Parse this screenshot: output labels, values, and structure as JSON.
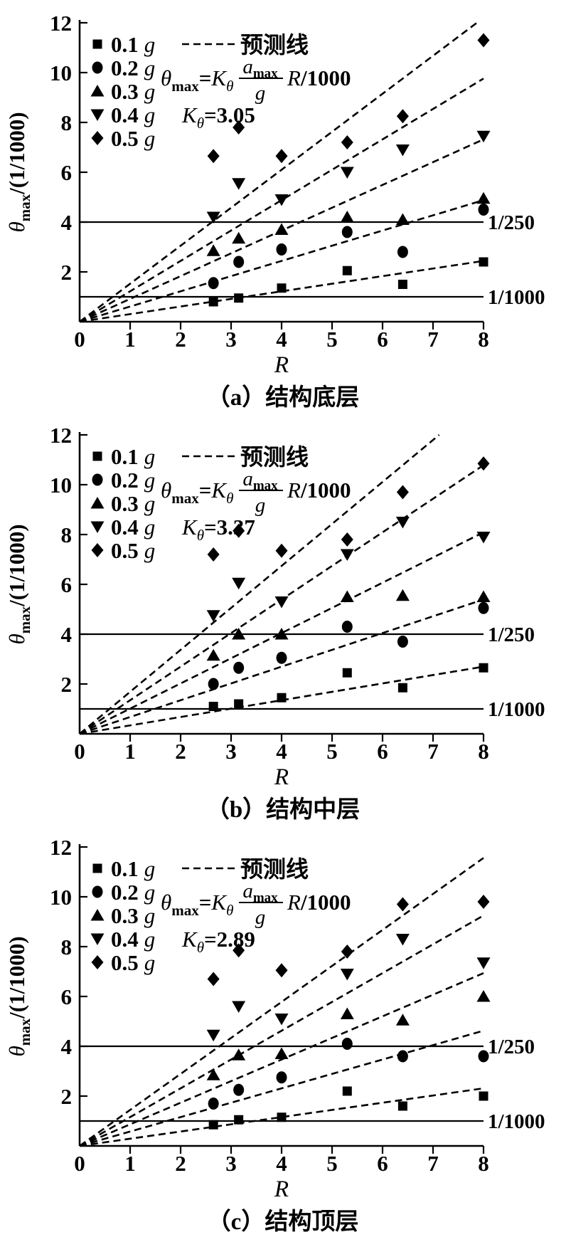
{
  "page": {
    "background": "#ffffff",
    "ink": "#000000"
  },
  "axis": {
    "xlabel": "R",
    "ylabel_text": "θmax/(1/1000)",
    "ylabel_parts": {
      "theta": "θ",
      "sub": "max",
      "rest": "/(1/1000)"
    },
    "x_ticks": [
      0,
      1,
      2,
      3,
      4,
      5,
      6,
      7,
      8
    ],
    "y_ticks": [
      2,
      4,
      6,
      8,
      10,
      12
    ],
    "xlim": [
      0,
      8
    ],
    "ylim": [
      0,
      12
    ]
  },
  "legend": {
    "position": "top-left-inside",
    "entries": [
      {
        "marker": "square",
        "value": "0.1",
        "unit": "g"
      },
      {
        "marker": "circle",
        "value": "0.2",
        "unit": "g"
      },
      {
        "marker": "triangle-up",
        "value": "0.3",
        "unit": "g"
      },
      {
        "marker": "triangle-down",
        "value": "0.4",
        "unit": "g"
      },
      {
        "marker": "diamond",
        "value": "0.5",
        "unit": "g"
      }
    ],
    "line_label": "预测线"
  },
  "formula": {
    "theta": "θ",
    "theta_sub": "max",
    "equals": "=",
    "k": "K",
    "k_sub": "θ",
    "num": "a",
    "num_sub": "max",
    "den": "g",
    "r": "R",
    "tail": "/1000"
  },
  "ref_lines": [
    {
      "y": 4,
      "label": "1/250"
    },
    {
      "y": 1,
      "label": "1/1000"
    }
  ],
  "chart_data": [
    {
      "type": "scatter",
      "caption": "（a）结构底层",
      "xlabel": "R",
      "ylabel": "θmax/(1/1000)",
      "xlim": [
        0,
        8
      ],
      "ylim": [
        0,
        12
      ],
      "grid": false,
      "k_theta": 3.05,
      "k_label": {
        "k": "K",
        "sub": "θ",
        "eq": "=",
        "value": "3.05"
      },
      "x": [
        2.65,
        3.15,
        4,
        5.3,
        6.4,
        8
      ],
      "series": [
        {
          "name": "0.1 g",
          "accel_g": 0.1,
          "marker": "square",
          "values": [
            0.8,
            0.95,
            1.35,
            2.05,
            1.5,
            2.4
          ]
        },
        {
          "name": "0.2 g",
          "accel_g": 0.2,
          "marker": "circle",
          "values": [
            1.55,
            2.4,
            2.9,
            3.6,
            2.8,
            4.5
          ]
        },
        {
          "name": "0.3 g",
          "accel_g": 0.3,
          "marker": "triangle-up",
          "values": [
            2.85,
            3.35,
            3.7,
            4.2,
            4.1,
            4.95
          ]
        },
        {
          "name": "0.4 g",
          "accel_g": 0.4,
          "marker": "triangle-down",
          "values": [
            4.2,
            5.55,
            4.9,
            6.0,
            6.9,
            7.45
          ]
        },
        {
          "name": "0.5 g",
          "accel_g": 0.5,
          "marker": "diamond",
          "values": [
            6.65,
            7.8,
            6.65,
            7.2,
            8.25,
            11.3
          ]
        }
      ]
    },
    {
      "type": "scatter",
      "caption": "（b）结构中层",
      "xlabel": "R",
      "ylabel": "θmax/(1/1000)",
      "xlim": [
        0,
        8
      ],
      "ylim": [
        0,
        12
      ],
      "grid": false,
      "k_theta": 3.37,
      "k_label": {
        "k": "K",
        "sub": "θ",
        "eq": "=",
        "value": "3.37"
      },
      "x": [
        2.65,
        3.15,
        4,
        5.3,
        6.4,
        8
      ],
      "series": [
        {
          "name": "0.1 g",
          "accel_g": 0.1,
          "marker": "square",
          "values": [
            1.1,
            1.2,
            1.45,
            2.45,
            1.85,
            2.65
          ]
        },
        {
          "name": "0.2 g",
          "accel_g": 0.2,
          "marker": "circle",
          "values": [
            2.0,
            2.65,
            3.05,
            4.3,
            3.7,
            5.05
          ]
        },
        {
          "name": "0.3 g",
          "accel_g": 0.3,
          "marker": "triangle-up",
          "values": [
            3.15,
            4.0,
            4.0,
            5.5,
            5.55,
            5.5
          ]
        },
        {
          "name": "0.4 g",
          "accel_g": 0.4,
          "marker": "triangle-down",
          "values": [
            4.75,
            6.05,
            5.3,
            7.2,
            8.5,
            7.9
          ]
        },
        {
          "name": "0.5 g",
          "accel_g": 0.5,
          "marker": "diamond",
          "values": [
            7.2,
            8.15,
            7.35,
            7.8,
            9.7,
            10.85
          ]
        }
      ]
    },
    {
      "type": "scatter",
      "caption": "（c）结构顶层",
      "xlabel": "R",
      "ylabel": "θmax/(1/1000)",
      "xlim": [
        0,
        8
      ],
      "ylim": [
        0,
        12
      ],
      "grid": false,
      "k_theta": 2.89,
      "k_label": {
        "k": "K",
        "sub": "θ",
        "eq": "=",
        "value": "2.89"
      },
      "x": [
        2.65,
        3.15,
        4,
        5.3,
        6.4,
        8
      ],
      "series": [
        {
          "name": "0.1 g",
          "accel_g": 0.1,
          "marker": "square",
          "values": [
            0.85,
            1.05,
            1.15,
            2.2,
            1.6,
            2.0
          ]
        },
        {
          "name": "0.2 g",
          "accel_g": 0.2,
          "marker": "circle",
          "values": [
            1.7,
            2.25,
            2.75,
            4.1,
            3.6,
            3.6
          ]
        },
        {
          "name": "0.3 g",
          "accel_g": 0.3,
          "marker": "triangle-up",
          "values": [
            2.85,
            3.65,
            3.7,
            5.3,
            5.05,
            6.0
          ]
        },
        {
          "name": "0.4 g",
          "accel_g": 0.4,
          "marker": "triangle-down",
          "values": [
            4.45,
            5.6,
            5.1,
            6.9,
            8.3,
            7.35
          ]
        },
        {
          "name": "0.5 g",
          "accel_g": 0.5,
          "marker": "diamond",
          "values": [
            6.7,
            7.85,
            7.05,
            7.8,
            9.7,
            9.8
          ]
        }
      ]
    }
  ]
}
